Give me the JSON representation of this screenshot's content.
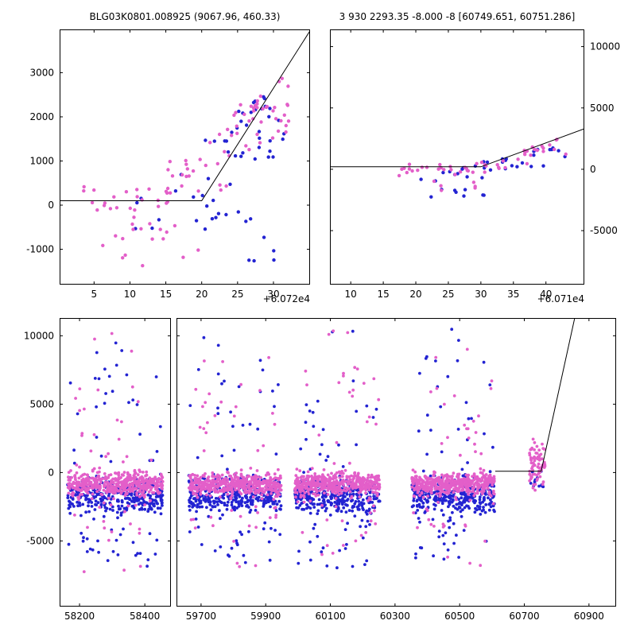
{
  "figure": {
    "background": "#ffffff",
    "pink_color": "#e35fc9",
    "blue_color": "#2323d2",
    "line_color": "#000000"
  },
  "chart_data": [
    {
      "name": "top-left-lightcurve-zoom",
      "type": "scatter",
      "title": "BLG03K0801.008925 (9067.96, 460.33)",
      "x_offset_label": "+6.072e4",
      "xlim": [
        0.2,
        35.1
      ],
      "ylim": [
        -1800,
        3980
      ],
      "xticks": [
        5,
        10,
        15,
        20,
        25,
        30
      ],
      "yticks": [
        -1000,
        0,
        1000,
        2000,
        3000
      ],
      "ylabel_side": "left",
      "marker_r": 2.2,
      "line": [
        [
          0.2,
          100
        ],
        [
          20,
          100
        ],
        [
          35.1,
          3950
        ]
      ],
      "series": [
        {
          "name": "blue",
          "color": "#2323d2",
          "clusters": [
            {
              "count": 6,
              "x": [
                10.5,
                17
              ],
              "y": [
                -650,
                350
              ]
            },
            {
              "count": 15,
              "x": [
                17,
                24
              ],
              "y": [
                -750,
                1500
              ]
            },
            {
              "count": 30,
              "x": [
                24,
                31.5
              ],
              "y": [
                600,
                2150
              ],
              "y_end": [
                1100,
                2680
              ]
            },
            {
              "count": 8,
              "x": [
                25,
                30.5
              ],
              "y": [
                -1350,
                -50
              ]
            },
            {
              "count": 3,
              "x": [
                20.5,
                23.5
              ],
              "y": [
                -550,
                150
              ]
            }
          ]
        },
        {
          "name": "pink",
          "color": "#e35fc9",
          "clusters": [
            {
              "count": 22,
              "x": [
                3.5,
                15.5
              ],
              "y": [
                -160,
                520
              ]
            },
            {
              "count": 13,
              "x": [
                5,
                21
              ],
              "y": [
                -1450,
                -350
              ]
            },
            {
              "count": 26,
              "x": [
                15,
                24
              ],
              "y": [
                -150,
                950
              ],
              "y_end": [
                350,
                1750
              ]
            },
            {
              "count": 40,
              "x": [
                24,
                32.3
              ],
              "y": [
                900,
                2400
              ],
              "y_end": [
                1700,
                3080
              ]
            },
            {
              "count": 5,
              "x": [
                8.5,
                13.5
              ],
              "y": [
                -850,
                -250
              ]
            }
          ]
        }
      ]
    },
    {
      "name": "top-right-lightcurve-zoom",
      "type": "scatter",
      "title": "3 930 2293.35 -8.000 -8 [60749.651, 60751.286]",
      "x_offset_label": "+6.071e4",
      "xlim": [
        6.8,
        45.9
      ],
      "ylim": [
        -9400,
        11400
      ],
      "xticks": [
        10,
        15,
        20,
        25,
        30,
        35,
        40
      ],
      "yticks": [
        -5000,
        0,
        5000,
        10000
      ],
      "ylabel_side": "right",
      "marker_r": 2.2,
      "line": [
        [
          6.8,
          200
        ],
        [
          30,
          200
        ],
        [
          45.9,
          3300
        ]
      ],
      "series": [
        {
          "name": "blue",
          "color": "#2323d2",
          "clusters": [
            {
              "count": 12,
              "x": [
                20,
                30.5
              ],
              "y": [
                -2450,
                -400
              ]
            },
            {
              "count": 7,
              "x": [
                24,
                30
              ],
              "y": [
                -700,
                350
              ]
            },
            {
              "count": 22,
              "x": [
                30,
                43.2
              ],
              "y": [
                -650,
                700
              ],
              "y_end": [
                600,
                2200
              ]
            }
          ]
        },
        {
          "name": "pink",
          "color": "#e35fc9",
          "clusters": [
            {
              "count": 24,
              "x": [
                17,
                30
              ],
              "y": [
                -700,
                700
              ],
              "dist": "gauss"
            },
            {
              "count": 28,
              "x": [
                30,
                43.2
              ],
              "y": [
                -350,
                950
              ],
              "y_end": [
                1100,
                2700
              ]
            },
            {
              "count": 6,
              "x": [
                21,
                30
              ],
              "y": [
                -1850,
                -800
              ]
            }
          ]
        }
      ]
    },
    {
      "name": "bottom-lightcurve-left-segment",
      "type": "scatter",
      "title": "",
      "axis_break": "broken x-axis, left segment",
      "xlim": [
        58139,
        58480
      ],
      "ylim": [
        -9800,
        11300
      ],
      "xticks": [
        58200,
        58400
      ],
      "yticks": [
        -5000,
        0,
        5000,
        10000
      ],
      "ylabel_side": "left",
      "marker_r": 1.9,
      "series": [
        {
          "name": "blue",
          "color": "#2323d2",
          "clusters": [
            {
              "count": 320,
              "x": [
                58163,
                58455
              ],
              "y": [
                -3300,
                -100
              ],
              "dist": "gauss"
            },
            {
              "count": 26,
              "x": [
                58165,
                58450
              ],
              "y": [
                200,
                8300
              ]
            },
            {
              "count": 26,
              "x": [
                58165,
                58450
              ],
              "y": [
                -6900,
                -3400
              ]
            },
            {
              "count": 3,
              "x": [
                58180,
                58420
              ],
              "y": [
                8500,
                10400
              ]
            }
          ]
        },
        {
          "name": "pink",
          "color": "#e35fc9",
          "clusters": [
            {
              "count": 450,
              "x": [
                58163,
                58455
              ],
              "y": [
                -1850,
                150
              ],
              "dist": "gauss"
            },
            {
              "count": 22,
              "x": [
                58170,
                58450
              ],
              "y": [
                250,
                6600
              ]
            },
            {
              "count": 3,
              "x": [
                58200,
                58400
              ],
              "y": [
                6900,
                10300
              ]
            },
            {
              "count": 18,
              "x": [
                58170,
                58450
              ],
              "y": [
                -4600,
                -1900
              ]
            },
            {
              "count": 4,
              "x": [
                58200,
                58430
              ],
              "y": [
                -7400,
                -4800
              ]
            }
          ]
        }
      ]
    },
    {
      "name": "bottom-lightcurve-right-segment",
      "type": "scatter",
      "title": "",
      "axis_break": "broken x-axis, right segment",
      "xlim": [
        59624,
        60984
      ],
      "ylim": [
        -9800,
        11300
      ],
      "xticks": [
        59700,
        59900,
        60100,
        60300,
        60500,
        60700,
        60900
      ],
      "yticks": [
        -5000,
        0,
        5000,
        10000
      ],
      "ylabel_side": "none",
      "marker_r": 1.9,
      "line": [
        [
          60610,
          100
        ],
        [
          60752,
          100
        ],
        [
          60868,
          12600
        ]
      ],
      "series": [
        {
          "name": "blue",
          "color": "#2323d2",
          "clusters": [
            {
              "count": 320,
              "x": [
                59662,
                59948
              ],
              "y": [
                -3300,
                -100
              ],
              "dist": "gauss"
            },
            {
              "count": 24,
              "x": [
                59665,
                59945
              ],
              "y": [
                200,
                8600
              ]
            },
            {
              "count": 24,
              "x": [
                59665,
                59945
              ],
              "y": [
                -6900,
                -3400
              ]
            },
            {
              "count": 2,
              "x": [
                59700,
                59900
              ],
              "y": [
                8800,
                10400
              ]
            },
            {
              "count": 320,
              "x": [
                59990,
                60253
              ],
              "y": [
                -3400,
                -200
              ],
              "dist": "gauss"
            },
            {
              "count": 22,
              "x": [
                59995,
                60250
              ],
              "y": [
                200,
                7200
              ]
            },
            {
              "count": 24,
              "x": [
                59995,
                60250
              ],
              "y": [
                -7000,
                -3400
              ]
            },
            {
              "count": 2,
              "x": [
                60050,
                60200
              ],
              "y": [
                8400,
                10400
              ]
            },
            {
              "count": 320,
              "x": [
                60352,
                60608
              ],
              "y": [
                -3300,
                -150
              ],
              "dist": "gauss"
            },
            {
              "count": 24,
              "x": [
                60355,
                60605
              ],
              "y": [
                200,
                8800
              ]
            },
            {
              "count": 22,
              "x": [
                60355,
                60605
              ],
              "y": [
                -6700,
                -3400
              ]
            },
            {
              "count": 2,
              "x": [
                60420,
                60560
              ],
              "y": [
                9600,
                10500
              ]
            },
            {
              "count": 12,
              "x": [
                60715,
                60762
              ],
              "y": [
                -1250,
                120
              ]
            }
          ]
        },
        {
          "name": "pink",
          "color": "#e35fc9",
          "clusters": [
            {
              "count": 450,
              "x": [
                59662,
                59948
              ],
              "y": [
                -1800,
                120
              ],
              "dist": "gauss"
            },
            {
              "count": 20,
              "x": [
                59665,
                59945
              ],
              "y": [
                200,
                7000
              ]
            },
            {
              "count": 3,
              "x": [
                59700,
                59920
              ],
              "y": [
                7400,
                10400
              ]
            },
            {
              "count": 16,
              "x": [
                59665,
                59945
              ],
              "y": [
                -4400,
                -1900
              ]
            },
            {
              "count": 4,
              "x": [
                59700,
                59900
              ],
              "y": [
                -7900,
                -4600
              ]
            },
            {
              "count": 450,
              "x": [
                59990,
                60253
              ],
              "y": [
                -1850,
                120
              ],
              "dist": "gauss"
            },
            {
              "count": 20,
              "x": [
                59995,
                60250
              ],
              "y": [
                200,
                8000
              ]
            },
            {
              "count": 3,
              "x": [
                60060,
                60200
              ],
              "y": [
                9400,
                10400
              ]
            },
            {
              "count": 16,
              "x": [
                59995,
                60250
              ],
              "y": [
                -4700,
                -1900
              ]
            },
            {
              "count": 5,
              "x": [
                60040,
                60220
              ],
              "y": [
                -8700,
                -4800
              ]
            },
            {
              "count": 450,
              "x": [
                60352,
                60608
              ],
              "y": [
                -1800,
                120
              ],
              "dist": "gauss"
            },
            {
              "count": 20,
              "x": [
                60355,
                60605
              ],
              "y": [
                200,
                7600
              ]
            },
            {
              "count": 2,
              "x": [
                60400,
                60560
              ],
              "y": [
                7900,
                9200
              ]
            },
            {
              "count": 16,
              "x": [
                60355,
                60605
              ],
              "y": [
                -4500,
                -1900
              ]
            },
            {
              "count": 4,
              "x": [
                60380,
                60580
              ],
              "y": [
                -7700,
                -4800
              ]
            },
            {
              "count": 75,
              "x": [
                60716,
                60764
              ],
              "y": [
                -1600,
                2600
              ],
              "dist": "gauss"
            }
          ]
        }
      ]
    }
  ]
}
